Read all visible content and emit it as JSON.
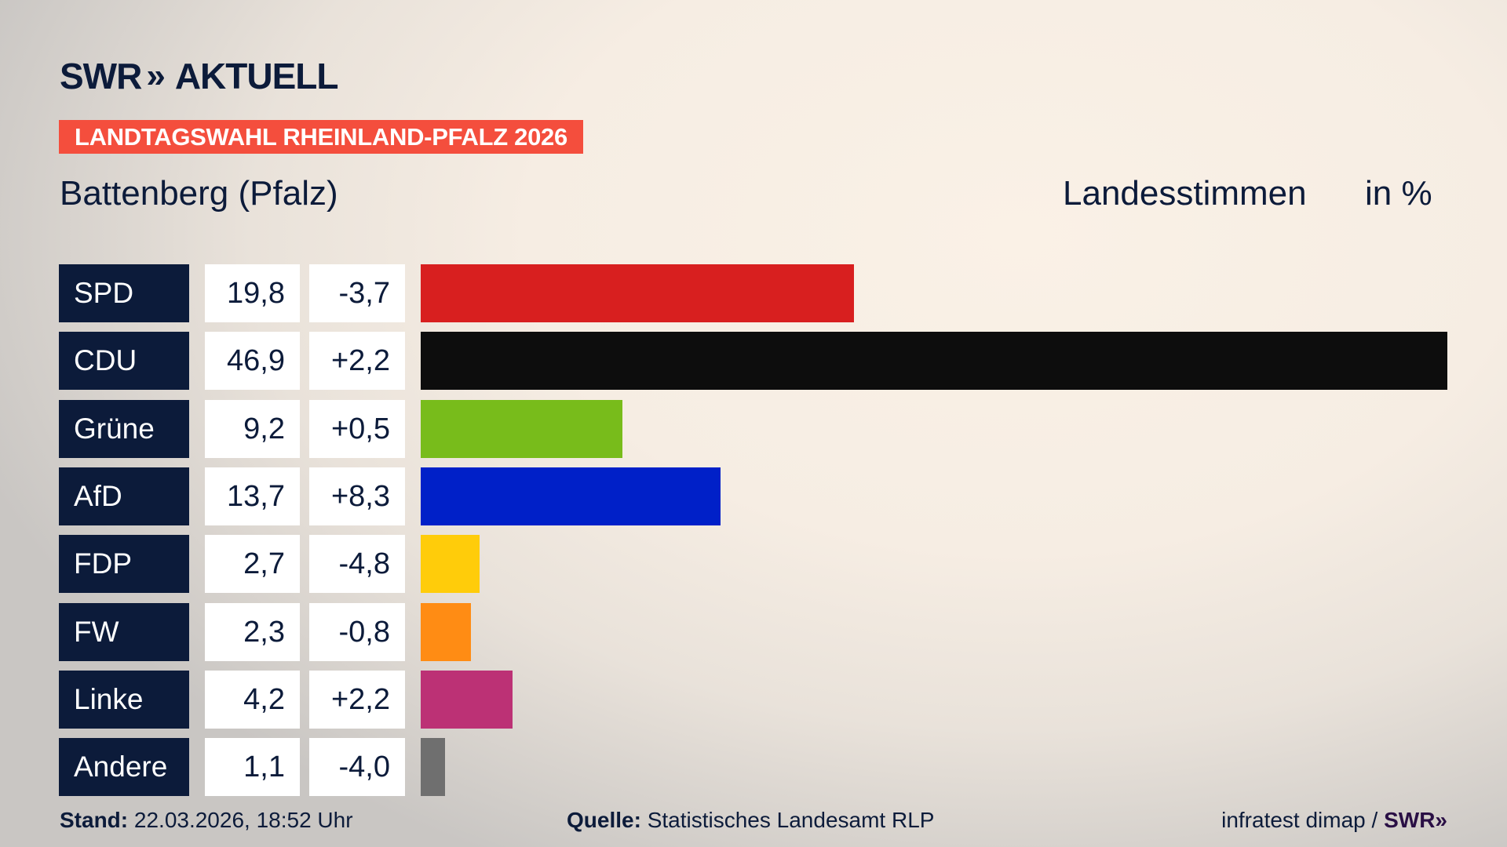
{
  "header": {
    "logo": "SWR AKTUELL",
    "logo_swr": "SWR",
    "logo_chevrons": "»",
    "logo_word": "AKTUELL",
    "banner": "LANDTAGSWAHL RHEINLAND-PFALZ 2026",
    "region": "Battenberg (Pfalz)",
    "measure": "Landesstimmen",
    "unit": "in %"
  },
  "chart_data": {
    "type": "bar",
    "orientation": "horizontal",
    "categories": [
      "SPD",
      "CDU",
      "Grüne",
      "AfD",
      "FDP",
      "FW",
      "Linke",
      "Andere"
    ],
    "values": [
      19.8,
      46.9,
      9.2,
      13.7,
      2.7,
      2.3,
      4.2,
      1.1
    ],
    "value_labels": [
      "19,8",
      "46,9",
      "9,2",
      "13,7",
      "2,7",
      "2,3",
      "4,2",
      "1,1"
    ],
    "changes": [
      -3.7,
      2.2,
      0.5,
      8.3,
      -4.8,
      -0.8,
      2.2,
      -4.0
    ],
    "change_labels": [
      "-3,7",
      "+2,2",
      "+0,5",
      "+8,3",
      "-4,8",
      "-0,8",
      "+2,2",
      "-4,0"
    ],
    "colors": [
      "#d81f1f",
      "#0d0d0d",
      "#78bc1b",
      "#0020c8",
      "#ffcc0a",
      "#ff8c14",
      "#bc3175",
      "#6f6f6f"
    ],
    "title": "Battenberg (Pfalz)",
    "grid": false
  },
  "footer": {
    "stand_label": "Stand:",
    "stand_value": "22.03.2026, 18:52 Uhr",
    "source_label": "Quelle:",
    "source_value": "Statistisches Landesamt RLP",
    "credit": "infratest dimap /",
    "credit_logo": "SWR»"
  },
  "colors": {
    "navy": "#0c1b3a",
    "banner": "#f44e3d"
  }
}
